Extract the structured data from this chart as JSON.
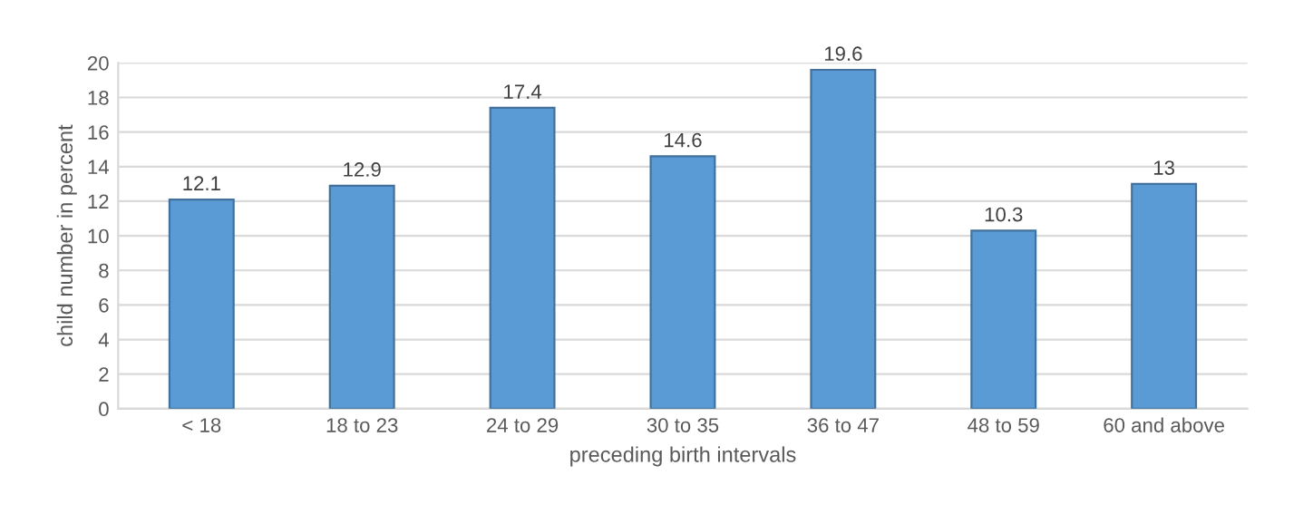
{
  "chart_data": {
    "type": "bar",
    "xlabel": "preceding birth intervals",
    "ylabel": "child number in percent",
    "categories": [
      "< 18",
      "18 to 23",
      "24 to 29",
      "30 to 35",
      "36 to 47",
      "48 to 59",
      "60 and above"
    ],
    "values": [
      12.1,
      12.9,
      17.4,
      14.6,
      19.6,
      10.3,
      13
    ],
    "color": "#5b9bd5",
    "ylim": [
      0,
      20
    ],
    "yticks": [
      0,
      2,
      4,
      6,
      8,
      10,
      12,
      14,
      16,
      18,
      20
    ],
    "grid": "y",
    "data_labels": true
  }
}
